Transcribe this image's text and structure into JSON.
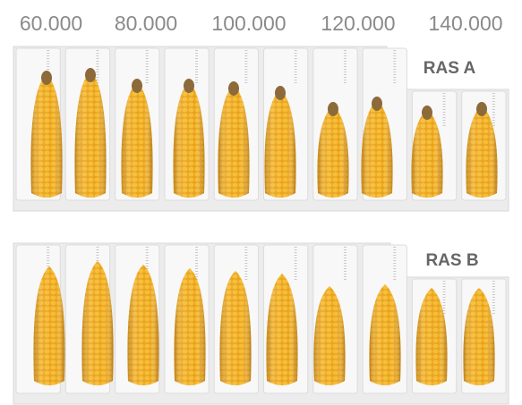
{
  "header": {
    "labels": [
      "60.000",
      "80.000",
      "100.000",
      "120.000",
      "140.000"
    ]
  },
  "rows": [
    {
      "label": "RAS A"
    },
    {
      "label": "RAS B"
    }
  ]
}
